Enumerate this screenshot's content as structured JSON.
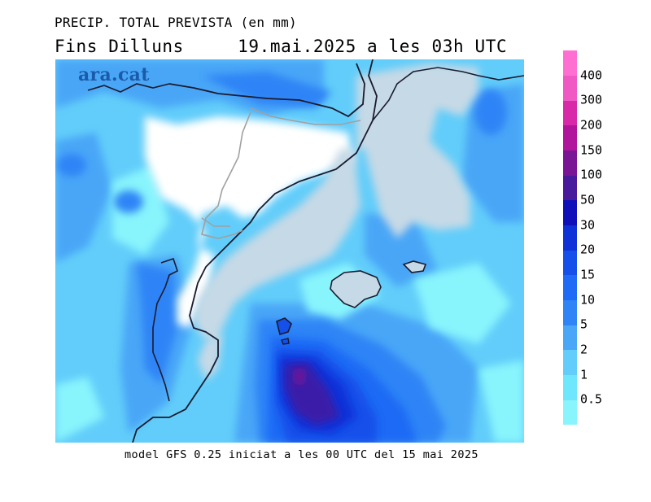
{
  "header": {
    "title": "PRECIP. TOTAL PREVISTA (en mm)",
    "subtitle": "Fins Dilluns     19.mai.2025 a les 03h UTC"
  },
  "map": {
    "watermark": "ara.cat"
  },
  "footer": {
    "text": "model GFS 0.25 iniciat a les 00 UTC del 15 mai 2025"
  },
  "legend": {
    "labels": [
      "0.5",
      "1",
      "2",
      "5",
      "10",
      "15",
      "20",
      "30",
      "50",
      "100",
      "150",
      "200",
      "300",
      "400"
    ],
    "colors": [
      "#88f4fc",
      "#6ee6fb",
      "#62cdfa",
      "#4aa6f7",
      "#2f84f6",
      "#1f6bf5",
      "#1550ea",
      "#0f32d8",
      "#1010b8",
      "#4a1a9c",
      "#7a1596",
      "#b0159b",
      "#d82aa8",
      "#f058c4",
      "#ff6fd2"
    ]
  },
  "colors": {
    "background": "#ffffff",
    "land_no_precip": "#ffffff",
    "sea_no_precip": "#c6d9e6",
    "coastline": "#1a1a2e",
    "border": "#a0a0a0"
  }
}
